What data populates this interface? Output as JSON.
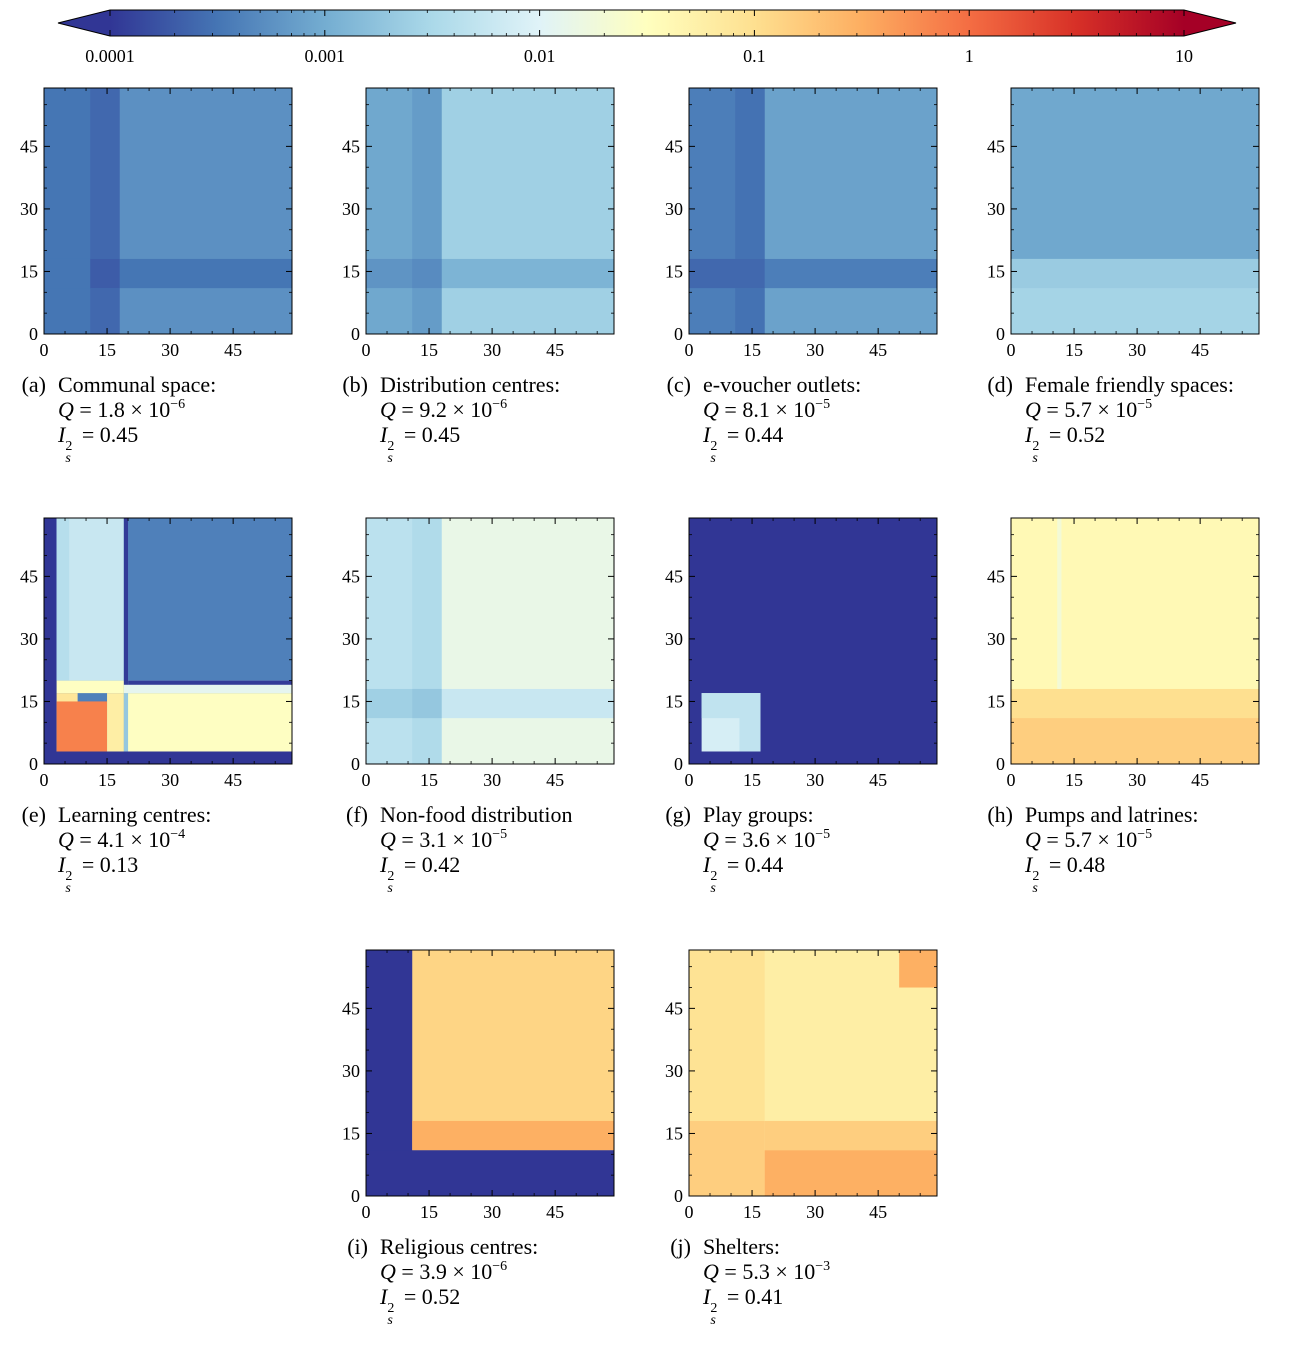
{
  "colorbar": {
    "scale": "log",
    "range": [
      0.0001,
      10
    ],
    "extend": "both",
    "ticks": [
      {
        "value": 0.0001,
        "label": "0.0001"
      },
      {
        "value": 0.001,
        "label": "0.001"
      },
      {
        "value": 0.01,
        "label": "0.01"
      },
      {
        "value": 0.1,
        "label": "0.1"
      },
      {
        "value": 1,
        "label": "1"
      },
      {
        "value": 10,
        "label": "10"
      }
    ],
    "colors": [
      "#313695",
      "#4575b4",
      "#74add1",
      "#abd9e9",
      "#e0f3f8",
      "#ffffbf",
      "#fee090",
      "#fdae61",
      "#f46d43",
      "#d73027",
      "#a50026"
    ]
  },
  "chart_data": [
    {
      "type": "heatmap",
      "tag": "(a)",
      "label": "Communal space:",
      "q_mantissa": "1.8",
      "q_exponent": "−6",
      "i_value": "0.45",
      "x_ticks": [
        "0",
        "15",
        "30",
        "45"
      ],
      "y_ticks": [
        "0",
        "15",
        "30",
        "45"
      ],
      "range": [
        0,
        59
      ],
      "bg_value": 0.00055,
      "cells": [
        {
          "x": [
            0,
            18
          ],
          "y": [
            0,
            59
          ],
          "value": 0.00032
        },
        {
          "x": [
            11,
            18
          ],
          "y": [
            0,
            59
          ],
          "value": 0.00025
        },
        {
          "x": [
            0,
            59
          ],
          "y": [
            11,
            18
          ],
          "value": 0.00032
        },
        {
          "x": [
            11,
            18
          ],
          "y": [
            11,
            18
          ],
          "value": 0.0002
        }
      ]
    },
    {
      "type": "heatmap",
      "tag": "(b)",
      "label": "Distribution centres:",
      "q_mantissa": "9.2",
      "q_exponent": "−6",
      "i_value": "0.45",
      "x_ticks": [
        "0",
        "15",
        "30",
        "45"
      ],
      "y_ticks": [
        "0",
        "15",
        "30",
        "45"
      ],
      "range": [
        0,
        59
      ],
      "bg_value": 0.0025,
      "cells": [
        {
          "x": [
            0,
            18
          ],
          "y": [
            0,
            59
          ],
          "value": 0.0009
        },
        {
          "x": [
            11,
            18
          ],
          "y": [
            0,
            59
          ],
          "value": 0.0007
        },
        {
          "x": [
            0,
            59
          ],
          "y": [
            11,
            18
          ],
          "value": 0.0012
        },
        {
          "x": [
            0,
            18
          ],
          "y": [
            11,
            18
          ],
          "value": 0.0006
        },
        {
          "x": [
            11,
            18
          ],
          "y": [
            11,
            18
          ],
          "value": 0.0005
        }
      ]
    },
    {
      "type": "heatmap",
      "tag": "(c)",
      "label": "e-voucher outlets:",
      "q_mantissa": "8.1",
      "q_exponent": "−5",
      "i_value": "0.44",
      "x_ticks": [
        "0",
        "15",
        "30",
        "45"
      ],
      "y_ticks": [
        "0",
        "15",
        "30",
        "45"
      ],
      "range": [
        0,
        59
      ],
      "bg_value": 0.0008,
      "cells": [
        {
          "x": [
            0,
            18
          ],
          "y": [
            0,
            59
          ],
          "value": 0.00038
        },
        {
          "x": [
            11,
            18
          ],
          "y": [
            0,
            59
          ],
          "value": 0.0003
        },
        {
          "x": [
            0,
            59
          ],
          "y": [
            11,
            18
          ],
          "value": 0.00038
        },
        {
          "x": [
            0,
            18
          ],
          "y": [
            11,
            18
          ],
          "value": 0.00025
        }
      ]
    },
    {
      "type": "heatmap",
      "tag": "(d)",
      "label": "Female friendly spaces:",
      "q_mantissa": "5.7",
      "q_exponent": "−5",
      "i_value": "0.52",
      "x_ticks": [
        "0",
        "15",
        "30",
        "45"
      ],
      "y_ticks": [
        "0",
        "15",
        "30",
        "45"
      ],
      "range": [
        0,
        59
      ],
      "bg_value": 0.0009,
      "cells": [
        {
          "x": [
            0,
            59
          ],
          "y": [
            0,
            18
          ],
          "value": 0.0028
        },
        {
          "x": [
            0,
            59
          ],
          "y": [
            11,
            18
          ],
          "value": 0.0022
        }
      ]
    },
    {
      "type": "heatmap",
      "tag": "(e)",
      "label": "Learning centres:",
      "q_mantissa": "4.1",
      "q_exponent": "−4",
      "i_value": "0.13",
      "x_ticks": [
        "0",
        "15",
        "30",
        "45"
      ],
      "y_ticks": [
        "0",
        "15",
        "30",
        "45"
      ],
      "range": [
        0,
        59
      ],
      "bg_value": 0.0004,
      "cells": [
        {
          "x": [
            0,
            59
          ],
          "y": [
            0,
            3
          ],
          "value": 0.0001
        },
        {
          "x": [
            0,
            3
          ],
          "y": [
            0,
            59
          ],
          "value": 0.0001
        },
        {
          "x": [
            3,
            19
          ],
          "y": [
            20,
            59
          ],
          "value": 0.006
        },
        {
          "x": [
            3,
            6
          ],
          "y": [
            20,
            59
          ],
          "value": 0.004
        },
        {
          "x": [
            19,
            20
          ],
          "y": [
            20,
            59
          ],
          "value": 0.0015
        },
        {
          "x": [
            19,
            59
          ],
          "y": [
            3,
            17
          ],
          "value": 0.03
        },
        {
          "x": [
            19,
            59
          ],
          "y": [
            17,
            20
          ],
          "value": 0.012
        },
        {
          "x": [
            3,
            19
          ],
          "y": [
            17,
            20
          ],
          "value": 0.03
        },
        {
          "x": [
            3,
            8
          ],
          "y": [
            3,
            17
          ],
          "value": 0.08
        },
        {
          "x": [
            8,
            15
          ],
          "y": [
            3,
            15
          ],
          "value": 0.7
        },
        {
          "x": [
            3,
            15
          ],
          "y": [
            3,
            15
          ],
          "value": 0.7
        },
        {
          "x": [
            15,
            19
          ],
          "y": [
            3,
            17
          ],
          "value": 0.06
        },
        {
          "x": [
            19,
            20
          ],
          "y": [
            3,
            17
          ],
          "value": 0.002
        },
        {
          "x": [
            20,
            59
          ],
          "y": [
            19,
            20
          ],
          "value": 0.00011
        },
        {
          "x": [
            19,
            20
          ],
          "y": [
            19,
            59
          ],
          "value": 0.00011
        }
      ]
    },
    {
      "type": "heatmap",
      "tag": "(f)",
      "label": "Non-food distribution",
      "q_mantissa": "3.1",
      "q_exponent": "−5",
      "i_value": "0.42",
      "x_ticks": [
        "0",
        "15",
        "30",
        "45"
      ],
      "y_ticks": [
        "0",
        "15",
        "30",
        "45"
      ],
      "range": [
        0,
        59
      ],
      "bg_value": 0.014,
      "cells": [
        {
          "x": [
            0,
            18
          ],
          "y": [
            0,
            59
          ],
          "value": 0.0045
        },
        {
          "x": [
            11,
            18
          ],
          "y": [
            0,
            59
          ],
          "value": 0.0035
        },
        {
          "x": [
            0,
            59
          ],
          "y": [
            11,
            18
          ],
          "value": 0.006
        },
        {
          "x": [
            0,
            18
          ],
          "y": [
            11,
            18
          ],
          "value": 0.0025
        },
        {
          "x": [
            11,
            18
          ],
          "y": [
            11,
            18
          ],
          "value": 0.002
        }
      ]
    },
    {
      "type": "heatmap",
      "tag": "(g)",
      "label": "Play groups:",
      "q_mantissa": "3.6",
      "q_exponent": "−5",
      "i_value": "0.44",
      "x_ticks": [
        "0",
        "15",
        "30",
        "45"
      ],
      "y_ticks": [
        "0",
        "15",
        "30",
        "45"
      ],
      "range": [
        0,
        59
      ],
      "bg_value": 0.0001,
      "cells": [
        {
          "x": [
            3,
            17
          ],
          "y": [
            3,
            17
          ],
          "value": 0.008
        },
        {
          "x": [
            12,
            17
          ],
          "y": [
            3,
            17
          ],
          "value": 0.005
        },
        {
          "x": [
            3,
            17
          ],
          "y": [
            11,
            17
          ],
          "value": 0.005
        }
      ]
    },
    {
      "type": "heatmap",
      "tag": "(h)",
      "label": "Pumps and latrines:",
      "q_mantissa": "5.7",
      "q_exponent": "−5",
      "i_value": "0.48",
      "x_ticks": [
        "0",
        "15",
        "30",
        "45"
      ],
      "y_ticks": [
        "0",
        "15",
        "30",
        "45"
      ],
      "range": [
        0,
        59
      ],
      "bg_value": 0.04,
      "cells": [
        {
          "x": [
            0,
            59
          ],
          "y": [
            0,
            18
          ],
          "value": 0.1
        },
        {
          "x": [
            0,
            59
          ],
          "y": [
            0,
            11
          ],
          "value": 0.15
        },
        {
          "x": [
            11,
            12
          ],
          "y": [
            18,
            59
          ],
          "value": 0.02
        }
      ]
    },
    {
      "type": "heatmap",
      "tag": "(i)",
      "label": "Religious centres:",
      "q_mantissa": "3.9",
      "q_exponent": "−6",
      "i_value": "0.52",
      "x_ticks": [
        "0",
        "15",
        "30",
        "45"
      ],
      "y_ticks": [
        "0",
        "15",
        "30",
        "45"
      ],
      "range": [
        0,
        59
      ],
      "bg_value": 0.13,
      "cells": [
        {
          "x": [
            0,
            11
          ],
          "y": [
            0,
            59
          ],
          "value": 0.0001
        },
        {
          "x": [
            0,
            59
          ],
          "y": [
            0,
            11
          ],
          "value": 0.0001
        },
        {
          "x": [
            11,
            59
          ],
          "y": [
            11,
            18
          ],
          "value": 0.3
        }
      ]
    },
    {
      "type": "heatmap",
      "tag": "(j)",
      "label": "Shelters:",
      "q_mantissa": "5.3",
      "q_exponent": "−3",
      "i_value": "0.41",
      "x_ticks": [
        "0",
        "15",
        "30",
        "45"
      ],
      "y_ticks": [
        "0",
        "15",
        "30",
        "45"
      ],
      "range": [
        0,
        59
      ],
      "bg_value": 0.06,
      "cells": [
        {
          "x": [
            0,
            18
          ],
          "y": [
            0,
            18
          ],
          "value": 0.15
        },
        {
          "x": [
            18,
            59
          ],
          "y": [
            0,
            11
          ],
          "value": 0.3
        },
        {
          "x": [
            18,
            59
          ],
          "y": [
            11,
            18
          ],
          "value": 0.15
        },
        {
          "x": [
            0,
            18
          ],
          "y": [
            18,
            59
          ],
          "value": 0.09
        },
        {
          "x": [
            50,
            59
          ],
          "y": [
            50,
            59
          ],
          "value": 0.3
        }
      ]
    }
  ]
}
